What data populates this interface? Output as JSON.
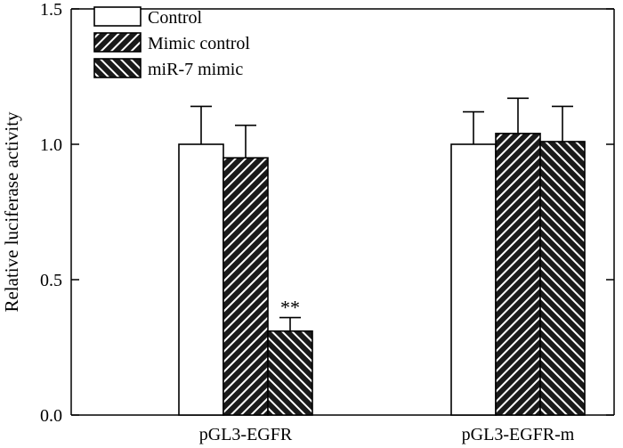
{
  "chart_data": {
    "type": "bar",
    "title": "",
    "xlabel": "",
    "ylabel": "Relative luciferase activity",
    "ylim": [
      0.0,
      1.5
    ],
    "yticks": [
      "0.0",
      "0.5",
      "1.0",
      "1.5"
    ],
    "grid": false,
    "legend_position": "top-left",
    "categories": [
      "pGL3-EGFR",
      "pGL3-EGFR-m"
    ],
    "series": [
      {
        "name": "Control",
        "pattern": "open",
        "values": [
          1.0,
          1.0
        ],
        "errors": [
          0.14,
          0.12
        ]
      },
      {
        "name": "Mimic control",
        "pattern": "forward-hatch",
        "values": [
          0.95,
          1.04
        ],
        "errors": [
          0.12,
          0.13
        ]
      },
      {
        "name": "miR-7 mimic",
        "pattern": "back-hatch",
        "values": [
          0.31,
          1.01
        ],
        "errors": [
          0.05,
          0.13
        ]
      }
    ],
    "annotations": [
      {
        "category": "pGL3-EGFR",
        "series": "miR-7 mimic",
        "text": "**"
      }
    ],
    "colors": {
      "fill": "#ffffff",
      "stroke": "#000000",
      "hatch_bg": "#1a1a1a",
      "hatch_line": "#ffffff"
    }
  }
}
